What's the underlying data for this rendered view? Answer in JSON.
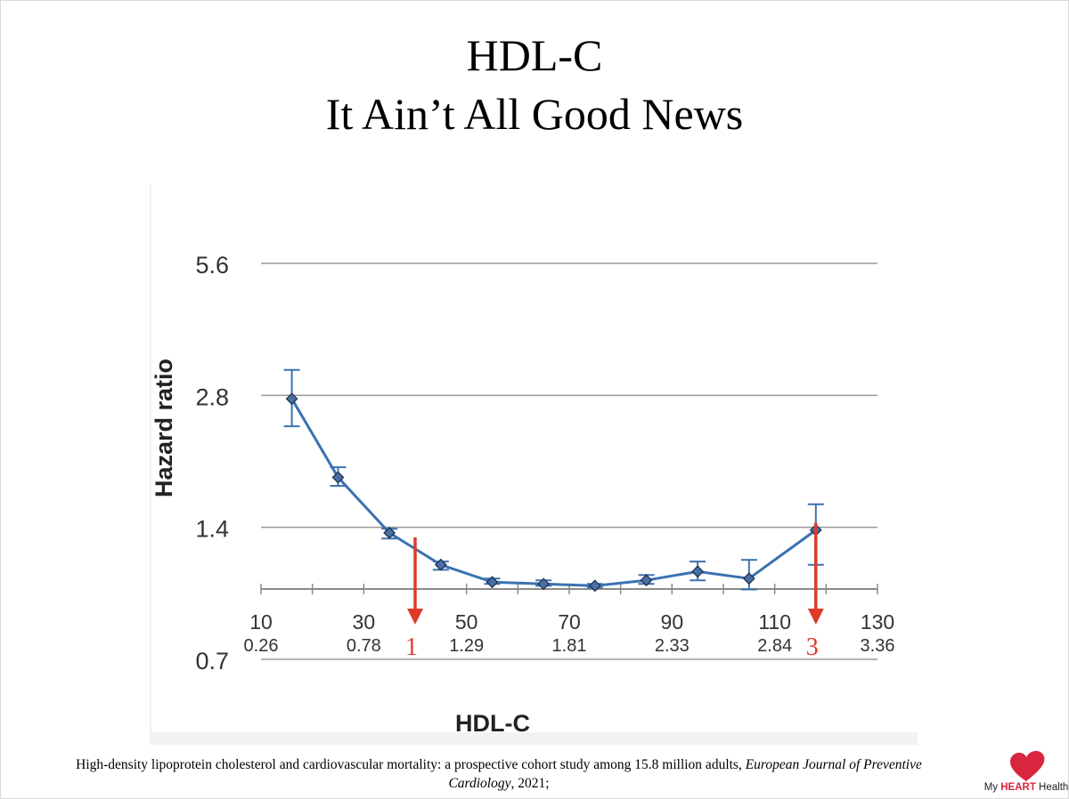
{
  "slide": {
    "title_line1": "HDL-C",
    "title_line2": "It Ain’t All Good News",
    "citation_plain": "High-density lipoprotein cholesterol and cardiovascular mortality: a prospective cohort study among 15.8 million adults, ",
    "citation_journal": "European Journal of Preventive Cardiology",
    "citation_year": ", 2021;",
    "logo": {
      "prefix": "My ",
      "brand": "HEART",
      "suffix": " Health",
      "icon": "heart-icon",
      "color": "#d7263d"
    }
  },
  "chart_data": {
    "type": "line",
    "title": "",
    "xlabel": "HDL-C",
    "ylabel": "Hazard ratio",
    "y_scale": "log",
    "ylim": [
      0.7,
      5.6
    ],
    "yticks": [
      0.7,
      1.4,
      2.8,
      5.6
    ],
    "ytick_labels": [
      "0.7",
      "1.4",
      "2.8",
      "5.6"
    ],
    "xlim": [
      10,
      130
    ],
    "xticks": [
      10,
      30,
      50,
      70,
      90,
      110,
      130
    ],
    "xtick_labels": [
      "10",
      "30",
      "50",
      "70",
      "90",
      "110",
      "130"
    ],
    "secondary_xtick_labels": [
      "0.26",
      "0.78",
      "1.29",
      "1.81",
      "2.33",
      "2.84",
      "3.36"
    ],
    "grid": true,
    "series": [
      {
        "color": "#3b72b0",
        "marker": "diamond",
        "x": [
          16,
          25,
          35,
          45,
          55,
          65,
          75,
          85,
          95,
          105,
          118
        ],
        "y": [
          2.75,
          1.82,
          1.36,
          1.15,
          1.05,
          1.04,
          1.03,
          1.06,
          1.11,
          1.07,
          1.38
        ],
        "ci_low": [
          2.38,
          1.74,
          1.32,
          1.12,
          1.04,
          1.03,
          1.02,
          1.04,
          1.06,
          1.01,
          1.15
        ],
        "ci_high": [
          3.2,
          1.92,
          1.39,
          1.17,
          1.07,
          1.06,
          1.04,
          1.09,
          1.17,
          1.18,
          1.58
        ]
      }
    ],
    "annotations": [
      {
        "label": "1",
        "x": 40,
        "from_y": 1.28,
        "color": "#e03a2a"
      },
      {
        "label": "3",
        "x": 118,
        "from_y": 1.38,
        "color": "#e03a2a"
      }
    ]
  }
}
